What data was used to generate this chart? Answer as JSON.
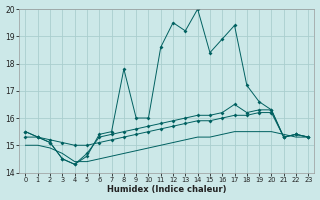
{
  "xlabel": "Humidex (Indice chaleur)",
  "bg_color": "#cce8e8",
  "grid_color": "#aacece",
  "line_color": "#006060",
  "xlim": [
    -0.5,
    23.5
  ],
  "ylim": [
    14,
    20
  ],
  "xticks": [
    0,
    1,
    2,
    3,
    4,
    5,
    6,
    7,
    8,
    9,
    10,
    11,
    12,
    13,
    14,
    15,
    16,
    17,
    18,
    19,
    20,
    21,
    22,
    23
  ],
  "yticks": [
    14,
    15,
    16,
    17,
    18,
    19,
    20
  ],
  "line_main": [
    15.5,
    15.3,
    15.1,
    14.5,
    14.3,
    14.6,
    15.4,
    15.5,
    17.8,
    16.0,
    16.0,
    18.6,
    19.5,
    19.2,
    20.0,
    18.4,
    18.9,
    19.4,
    17.2,
    16.6,
    16.3,
    15.3,
    15.4,
    15.3
  ],
  "line_mid1": [
    15.5,
    15.3,
    15.1,
    14.5,
    14.3,
    14.7,
    15.3,
    15.4,
    15.5,
    15.6,
    15.7,
    15.8,
    15.9,
    16.0,
    16.1,
    16.1,
    16.2,
    16.5,
    16.2,
    16.3,
    16.3,
    15.3,
    15.4,
    15.3
  ],
  "line_mid2": [
    15.3,
    15.3,
    15.2,
    15.1,
    15.0,
    15.0,
    15.1,
    15.2,
    15.3,
    15.4,
    15.5,
    15.6,
    15.7,
    15.8,
    15.9,
    15.9,
    16.0,
    16.1,
    16.1,
    16.2,
    16.2,
    15.3,
    15.4,
    15.3
  ],
  "line_low": [
    15.0,
    15.0,
    14.9,
    14.7,
    14.4,
    14.4,
    14.5,
    14.6,
    14.7,
    14.8,
    14.9,
    15.0,
    15.1,
    15.2,
    15.3,
    15.3,
    15.4,
    15.5,
    15.5,
    15.5,
    15.5,
    15.4,
    15.3,
    15.3
  ]
}
